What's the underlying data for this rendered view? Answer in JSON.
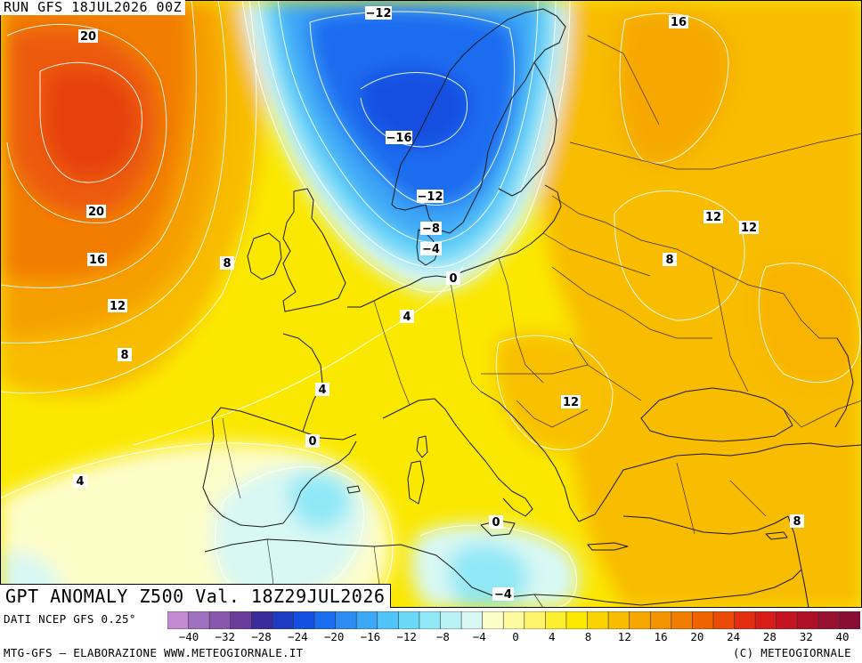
{
  "header": {
    "run": "RUN GFS 18JUL2026 00Z"
  },
  "title": "GPT ANOMALY Z500 Val. 18Z29JUL2026",
  "footer": {
    "source": "DATI NCEP GFS 0.25°",
    "credit": "MTG-GFS — ELABORAZIONE WWW.METEOGIORNALE.IT",
    "copyright": "(C) METEOGIORNALE"
  },
  "legend": {
    "ticks": [
      "−40",
      "−32",
      "−28",
      "−24",
      "−20",
      "−16",
      "−12",
      "−8",
      "−4",
      "0",
      "4",
      "8",
      "12",
      "16",
      "20",
      "24",
      "28",
      "32",
      "40"
    ],
    "colors": [
      "#c48ad2",
      "#a070c0",
      "#8858ae",
      "#6a3c9c",
      "#3c2c9a",
      "#1e3cc2",
      "#1450e0",
      "#1c6cf0",
      "#2c8cf4",
      "#3ca8f6",
      "#50c4f8",
      "#6cd8f8",
      "#90e8f6",
      "#b8f2f4",
      "#d8f8f4",
      "#fdfdc8",
      "#fdfaa0",
      "#fdf46c",
      "#fdee30",
      "#fde800",
      "#fad200",
      "#f8bc00",
      "#f6a800",
      "#f49400",
      "#f27e00",
      "#f06400",
      "#ec4a08",
      "#e42c10",
      "#d81c18",
      "#c41420",
      "#ae1028",
      "#981030",
      "#860e34"
    ]
  },
  "contour_labels": [
    "20",
    "20",
    "16",
    "12",
    "8",
    "4",
    "8",
    "−12",
    "−16",
    "−12",
    "−8",
    "−4",
    "0",
    "4",
    "4",
    "0",
    "16",
    "12",
    "12",
    "8",
    "12",
    "0",
    "−4",
    "8"
  ]
}
